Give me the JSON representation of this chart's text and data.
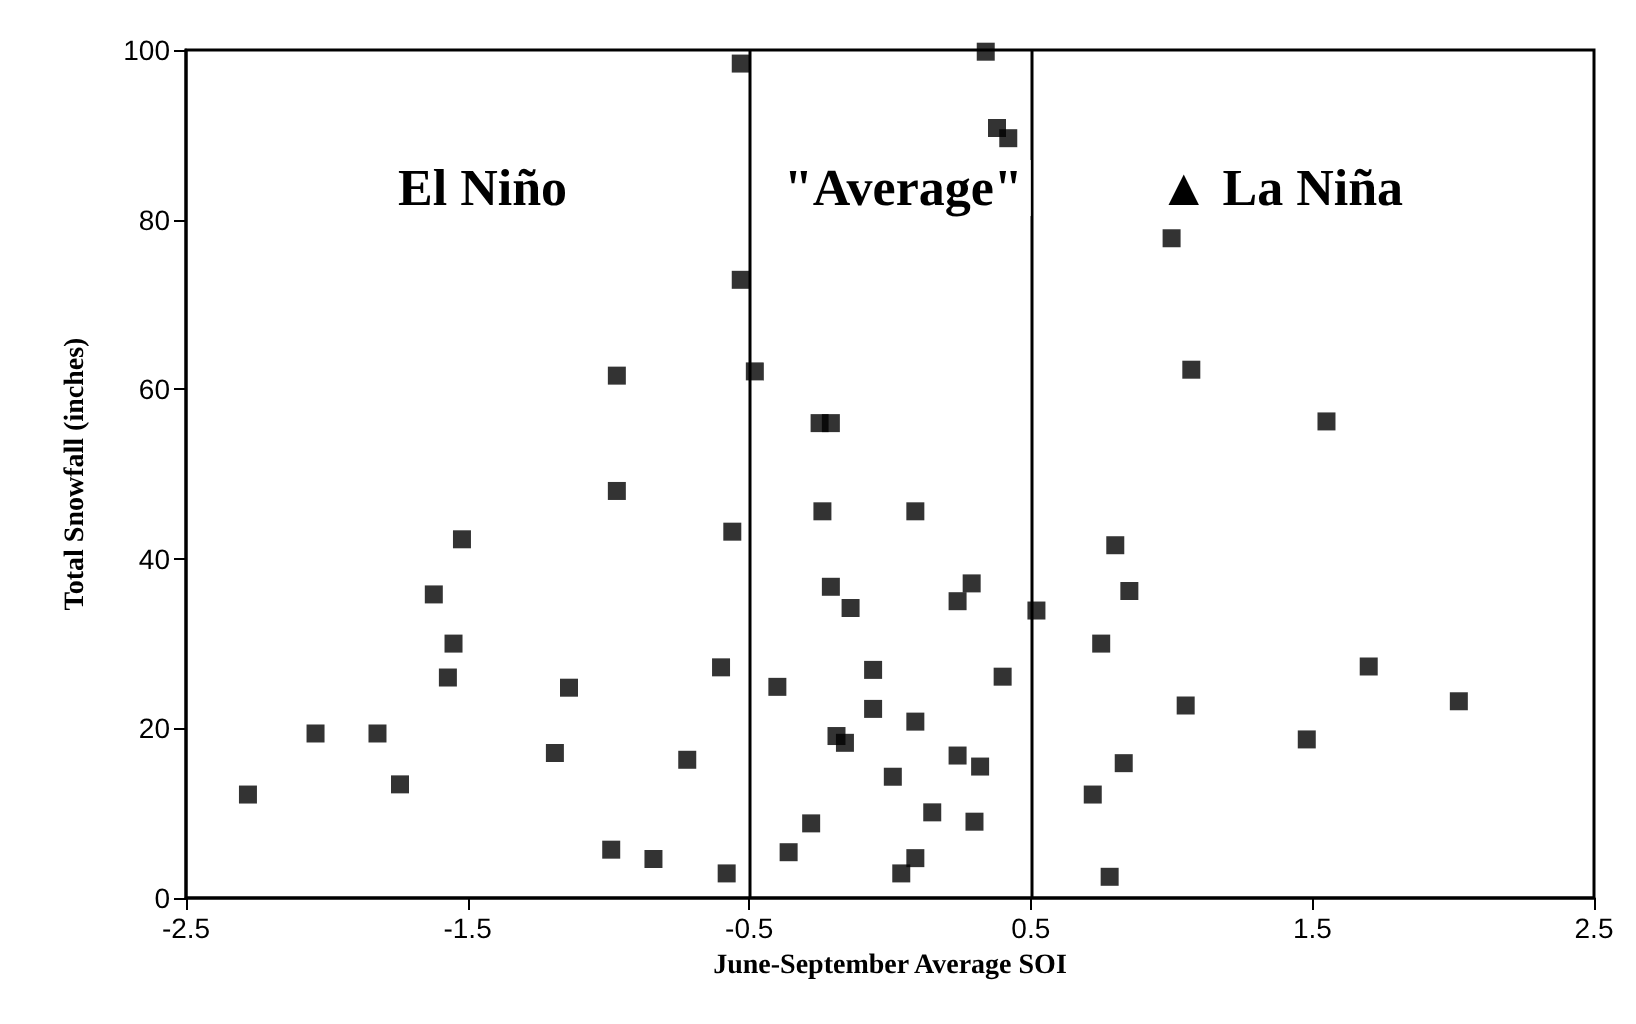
{
  "chart_data": {
    "type": "scatter",
    "xlabel": "June-September Average SOI",
    "ylabel": "Total Snowfall (inches)",
    "xlim": [
      -2.5,
      2.5
    ],
    "xticks": [
      -2.5,
      -1.5,
      -0.5,
      0.5,
      1.5,
      2.5
    ],
    "ylim": [
      0,
      100
    ],
    "yticks": [
      0,
      20,
      40,
      60,
      80,
      100
    ],
    "grid": false,
    "marker": "square",
    "annotations": [
      "El Niño",
      "\"Average\"",
      "▲ La Niña"
    ],
    "ref_lines": [
      {
        "axis": "x",
        "value": -0.5,
        "color": "#000000"
      },
      {
        "axis": "x",
        "value": 0.5,
        "color": "#000000"
      }
    ],
    "series": [
      {
        "color": "#000000",
        "x": [
          -2.28,
          -2.04,
          -1.82,
          -1.74,
          -1.62,
          -1.52,
          -1.55,
          -1.57,
          -1.19,
          -1.14,
          -0.97,
          -0.97,
          -0.99,
          -0.84,
          -0.72,
          -0.6,
          -0.56,
          -0.58,
          -0.48,
          -0.53,
          0.34,
          0.38,
          0.42,
          -0.53,
          -0.25,
          -0.21,
          -0.24,
          0.09,
          -0.21,
          -0.14,
          0.29,
          0.24,
          0.52,
          -0.4,
          -0.06,
          0.4,
          -0.06,
          0.09,
          -0.19,
          -0.16,
          0.24,
          0.32,
          0.01,
          -0.28,
          0.15,
          0.3,
          -0.36,
          0.09,
          0.04,
          1.0,
          1.07,
          1.55,
          0.8,
          0.85,
          0.75,
          1.7,
          2.02,
          1.05,
          1.48,
          0.83,
          0.72,
          0.78
        ],
        "values": [
          12.2,
          19.4,
          19.4,
          13.4,
          35.8,
          42.3,
          30.0,
          26.0,
          17.1,
          24.8,
          61.6,
          48.0,
          5.7,
          4.6,
          16.3,
          27.2,
          43.2,
          2.9,
          62.1,
          98.4,
          99.8,
          90.8,
          89.6,
          72.9,
          56.0,
          56.0,
          45.6,
          45.6,
          36.7,
          34.2,
          37.1,
          35.0,
          33.9,
          24.9,
          26.9,
          26.1,
          22.3,
          20.8,
          19.1,
          18.3,
          16.8,
          15.5,
          14.3,
          8.8,
          10.1,
          9.0,
          5.4,
          4.7,
          2.9,
          77.8,
          62.3,
          56.2,
          41.6,
          36.2,
          30.0,
          27.3,
          23.2,
          22.7,
          18.7,
          15.9,
          12.2,
          2.5
        ]
      }
    ]
  }
}
